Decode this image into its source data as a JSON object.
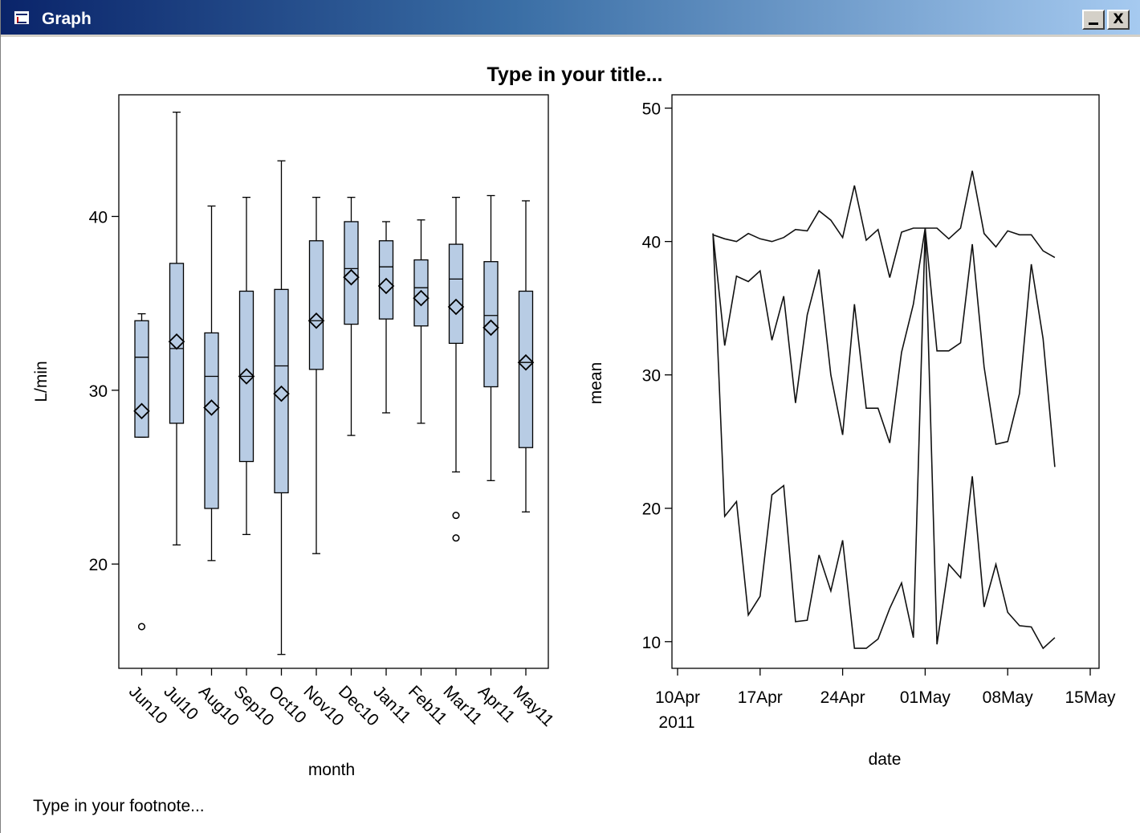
{
  "window": {
    "title": "Graph",
    "icon": "graph-window-icon",
    "minimize_label": "_",
    "close_label": "X"
  },
  "graph": {
    "title": "Type in your title...",
    "footnote": "Type in your footnote..."
  },
  "chart_data": [
    {
      "type": "box",
      "xlabel": "month",
      "ylabel": "L/min",
      "ylim": [
        14,
        47
      ],
      "yticks": [
        20,
        30,
        40
      ],
      "box_fill": "#b8cce4",
      "categories": [
        "Jun10",
        "Jul10",
        "Aug10",
        "Sep10",
        "Oct10",
        "Nov10",
        "Dec10",
        "Jan11",
        "Feb11",
        "Mar11",
        "Apr11",
        "May11"
      ],
      "boxes": [
        {
          "whisker_low": 27.3,
          "q1": 27.3,
          "median": 31.9,
          "q3": 34.0,
          "whisker_high": 34.4,
          "mean": 28.8,
          "outliers": [
            16.4
          ]
        },
        {
          "whisker_low": 21.1,
          "q1": 28.1,
          "median": 32.4,
          "q3": 37.3,
          "whisker_high": 46.0,
          "mean": 32.8,
          "outliers": []
        },
        {
          "whisker_low": 20.2,
          "q1": 23.2,
          "median": 30.8,
          "q3": 33.3,
          "whisker_high": 40.6,
          "mean": 29.0,
          "outliers": []
        },
        {
          "whisker_low": 21.7,
          "q1": 25.9,
          "median": 30.8,
          "q3": 35.7,
          "whisker_high": 41.1,
          "mean": 30.8,
          "outliers": []
        },
        {
          "whisker_low": 14.8,
          "q1": 24.1,
          "median": 31.4,
          "q3": 35.8,
          "whisker_high": 43.2,
          "mean": 29.8,
          "outliers": []
        },
        {
          "whisker_low": 20.6,
          "q1": 31.2,
          "median": 34.0,
          "q3": 38.6,
          "whisker_high": 41.1,
          "mean": 34.0,
          "outliers": []
        },
        {
          "whisker_low": 27.4,
          "q1": 33.8,
          "median": 37.0,
          "q3": 39.7,
          "whisker_high": 41.1,
          "mean": 36.5,
          "outliers": []
        },
        {
          "whisker_low": 28.7,
          "q1": 34.1,
          "median": 37.1,
          "q3": 38.6,
          "whisker_high": 39.7,
          "mean": 36.0,
          "outliers": []
        },
        {
          "whisker_low": 28.1,
          "q1": 33.7,
          "median": 35.9,
          "q3": 37.5,
          "whisker_high": 39.8,
          "mean": 35.3,
          "outliers": []
        },
        {
          "whisker_low": 25.3,
          "q1": 32.7,
          "median": 36.4,
          "q3": 38.4,
          "whisker_high": 41.1,
          "mean": 34.8,
          "outliers": [
            22.8,
            21.5
          ]
        },
        {
          "whisker_low": 24.8,
          "q1": 30.2,
          "median": 34.3,
          "q3": 37.4,
          "whisker_high": 41.2,
          "mean": 33.6,
          "outliers": []
        },
        {
          "whisker_low": 23.0,
          "q1": 26.7,
          "median": 31.6,
          "q3": 35.7,
          "whisker_high": 40.9,
          "mean": 31.6,
          "outliers": []
        }
      ]
    },
    {
      "type": "line",
      "xlabel": "date",
      "ylabel": "mean",
      "ylim": [
        8,
        51
      ],
      "yticks": [
        10,
        20,
        30,
        40,
        50
      ],
      "xlim": [
        "2011-04-10",
        "2011-05-15"
      ],
      "xticks": [
        {
          "date": "2011-04-10",
          "label": "10Apr",
          "sublabel": "2011"
        },
        {
          "date": "2011-04-17",
          "label": "17Apr",
          "sublabel": ""
        },
        {
          "date": "2011-04-24",
          "label": "24Apr",
          "sublabel": ""
        },
        {
          "date": "2011-05-01",
          "label": "01May",
          "sublabel": ""
        },
        {
          "date": "2011-05-08",
          "label": "08May",
          "sublabel": ""
        },
        {
          "date": "2011-05-15",
          "label": "15May",
          "sublabel": ""
        }
      ],
      "x": [
        "2011-04-13",
        "2011-04-14",
        "2011-04-15",
        "2011-04-16",
        "2011-04-17",
        "2011-04-18",
        "2011-04-19",
        "2011-04-20",
        "2011-04-21",
        "2011-04-22",
        "2011-04-23",
        "2011-04-24",
        "2011-04-25",
        "2011-04-26",
        "2011-04-27",
        "2011-04-28",
        "2011-04-29",
        "2011-04-30",
        "2011-05-01",
        "2011-05-02",
        "2011-05-03",
        "2011-05-04",
        "2011-05-05",
        "2011-05-06",
        "2011-05-07",
        "2011-05-08",
        "2011-05-09",
        "2011-05-10",
        "2011-05-11",
        "2011-05-12"
      ],
      "series": [
        {
          "values": [
            40.5,
            40.2,
            40.0,
            40.6,
            40.2,
            40.0,
            40.3,
            40.9,
            40.8,
            42.3,
            41.6,
            40.3,
            44.2,
            40.1,
            40.9,
            37.3,
            40.7,
            41.0,
            41.0,
            41.0,
            40.2,
            41.0,
            45.3,
            40.6,
            39.6,
            40.8,
            40.5,
            40.5,
            39.3,
            38.8
          ]
        },
        {
          "values": [
            40.6,
            32.2,
            37.4,
            37.0,
            37.8,
            32.6,
            35.9,
            27.9,
            34.5,
            37.9,
            30.0,
            25.5,
            35.3,
            27.5,
            27.5,
            24.9,
            31.7,
            35.3,
            41.0,
            31.8,
            31.8,
            32.4,
            39.8,
            30.6,
            24.8,
            25.0,
            28.6,
            38.3,
            32.7,
            23.1
          ]
        },
        {
          "values": [
            40.6,
            19.4,
            20.5,
            12.0,
            13.4,
            21.0,
            21.7,
            11.5,
            11.6,
            16.5,
            13.8,
            17.6,
            9.5,
            9.5,
            10.2,
            12.5,
            14.4,
            10.3,
            41.0,
            9.8,
            15.8,
            14.8,
            22.4,
            12.6,
            15.8,
            12.2,
            11.2,
            11.1,
            9.5,
            10.3
          ]
        }
      ]
    }
  ]
}
